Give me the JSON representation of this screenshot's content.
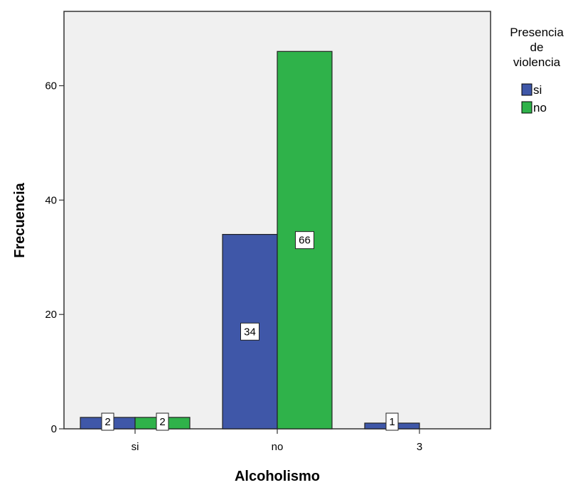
{
  "chart_data": {
    "type": "bar",
    "title": "",
    "xlabel": "Alcoholismo",
    "ylabel": "Frecuencia",
    "categories": [
      "si",
      "no",
      "3"
    ],
    "series": [
      {
        "name": "si",
        "values": [
          2,
          34,
          1
        ],
        "labels": [
          "2",
          "34",
          "1"
        ],
        "color": "#3f57a8"
      },
      {
        "name": "no",
        "values": [
          2,
          66,
          null
        ],
        "labels": [
          "2",
          "66",
          ""
        ],
        "color": "#2fb24a"
      }
    ],
    "ylim": [
      0,
      73
    ],
    "yticks": [
      0,
      20,
      40,
      60
    ],
    "ytick_labels": [
      "0",
      "20",
      "40",
      "60"
    ],
    "grid": false,
    "legend": {
      "title_lines": [
        "Presencia",
        "de",
        "violencia"
      ],
      "placement": "right"
    },
    "colors": {
      "plot_background": "#f0f0f0",
      "border": "#333333"
    }
  }
}
